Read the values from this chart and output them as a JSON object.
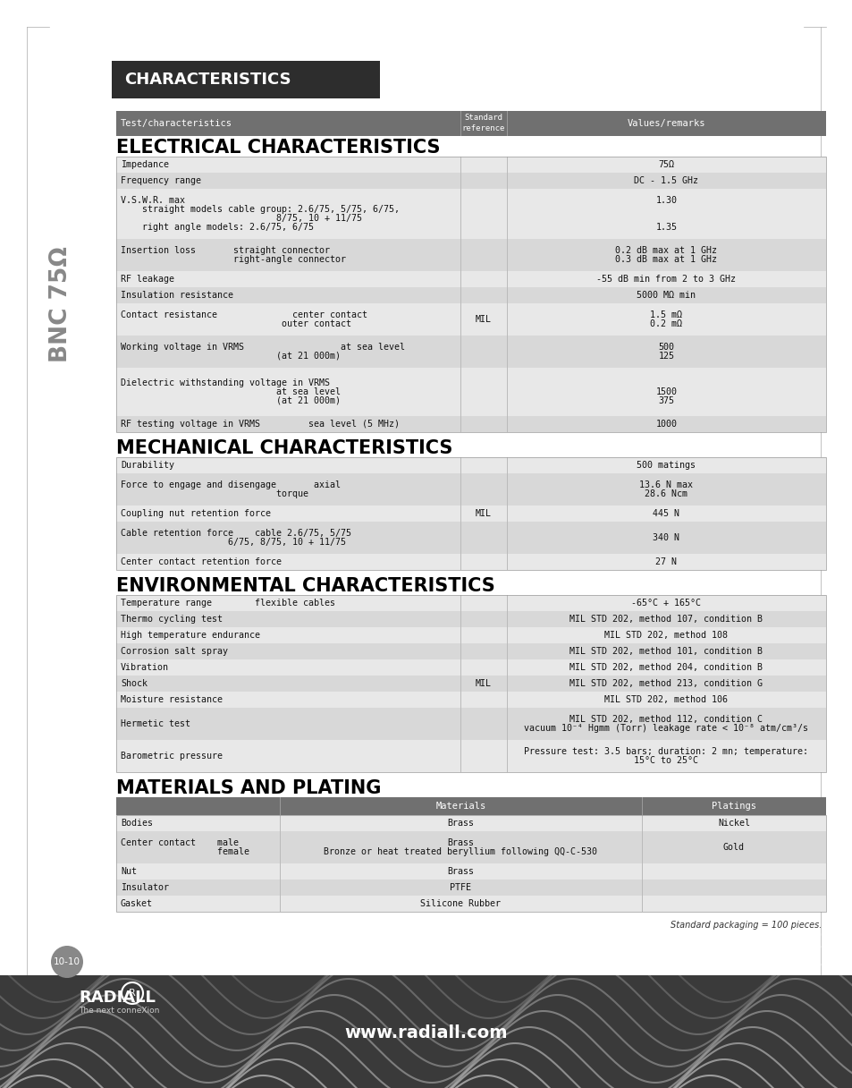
{
  "page_bg": "#ffffff",
  "header_bg": "#2d2d2d",
  "header_text_color": "#ffffff",
  "table_header_bg": "#707070",
  "row_light": "#e8e8e8",
  "row_mid": "#d8d8d8",
  "side_label": "BNC 75Ω",
  "header_title": "CHARACTERISTICS",
  "col_header": [
    "Test/characteristics",
    "Standard\nreference",
    "Values/remarks"
  ],
  "electrical_title": "ELECTRICAL CHARACTERISTICS",
  "electrical_rows": [
    {
      "left": "Impedance",
      "mid": "",
      "right": "75Ω",
      "shade": 0
    },
    {
      "left": "Frequency range",
      "mid": "",
      "right": "DC - 1.5 GHz",
      "shade": 1
    },
    {
      "left": "V.S.W.R. max\n    straight models cable group: 2.6/75, 5/75, 6/75,\n                             8/75, 10 + 11/75\n    right angle models: 2.6/75, 6/75",
      "mid": "",
      "right": "1.30\n\n\n1.35",
      "shade": 0
    },
    {
      "left": "Insertion loss       straight connector\n                     right-angle connector",
      "mid": "",
      "right": "0.2 dB max at 1 GHz\n0.3 dB max at 1 GHz",
      "shade": 1
    },
    {
      "left": "RF leakage",
      "mid": "",
      "right": "-55 dB min from 2 to 3 GHz",
      "shade": 0
    },
    {
      "left": "Insulation resistance",
      "mid": "",
      "right": "5000 MΩ min",
      "shade": 1
    },
    {
      "left": "Contact resistance              center contact\n                              outer contact",
      "mid": "MIL",
      "right": "1.5 mΩ\n0.2 mΩ",
      "shade": 0
    },
    {
      "left": "Working voltage in VRMS                  at sea level\n                             (at 21 000m)",
      "mid": "",
      "right": "500\n125",
      "shade": 1
    },
    {
      "left": "Dielectric withstanding voltage in VRMS\n                             at sea level\n                             (at 21 000m)",
      "mid": "",
      "right": "\n1500\n375",
      "shade": 0
    },
    {
      "left": "RF testing voltage in VRMS         sea level (5 MHz)",
      "mid": "",
      "right": "1000",
      "shade": 1
    }
  ],
  "mechanical_title": "MECHANICAL CHARACTERISTICS",
  "mechanical_rows": [
    {
      "left": "Durability",
      "mid": "",
      "right": "500 matings",
      "shade": 0
    },
    {
      "left": "Force to engage and disengage       axial\n                             torque",
      "mid": "",
      "right": "13.6 N max\n28.6 Ncm",
      "shade": 1
    },
    {
      "left": "Coupling nut retention force",
      "mid": "MIL",
      "right": "445 N",
      "shade": 0
    },
    {
      "left": "Cable retention force    cable 2.6/75, 5/75\n                    6/75, 8/75, 10 + 11/75",
      "mid": "",
      "right": "340 N",
      "shade": 1
    },
    {
      "left": "Center contact retention force",
      "mid": "",
      "right": "27 N",
      "shade": 0
    }
  ],
  "environmental_title": "ENVIRONMENTAL CHARACTERISTICS",
  "environmental_rows": [
    {
      "left": "Temperature range        flexible cables",
      "mid": "",
      "right": "-65°C + 165°C",
      "shade": 0
    },
    {
      "left": "Thermo cycling test",
      "mid": "",
      "right": "MIL STD 202, method 107, condition B",
      "shade": 1
    },
    {
      "left": "High temperature endurance",
      "mid": "",
      "right": "MIL STD 202, method 108",
      "shade": 0
    },
    {
      "left": "Corrosion salt spray",
      "mid": "",
      "right": "MIL STD 202, method 101, condition B",
      "shade": 1
    },
    {
      "left": "Vibration",
      "mid": "",
      "right": "MIL STD 202, method 204, condition B",
      "shade": 0
    },
    {
      "left": "Shock",
      "mid": "MIL",
      "right": "MIL STD 202, method 213, condition G",
      "shade": 1
    },
    {
      "left": "Moisture resistance",
      "mid": "",
      "right": "MIL STD 202, method 106",
      "shade": 0
    },
    {
      "left": "Hermetic test",
      "mid": "",
      "right": "MIL STD 202, method 112, condition C\nvacuum 10⁻⁴ Hgmm (Torr) leakage rate < 10⁻⁸ atm/cm³/s",
      "shade": 1
    },
    {
      "left": "Barometric pressure",
      "mid": "",
      "right": "Pressure test: 3.5 bars; duration: 2 mn; temperature:\n15°C to 25°C",
      "shade": 0
    }
  ],
  "materials_title": "MATERIALS AND PLATING",
  "materials_col_header": [
    "",
    "Materials",
    "Platings"
  ],
  "materials_rows": [
    {
      "left": "Bodies",
      "mid": "Brass",
      "right": "Nickel",
      "shade": 0
    },
    {
      "left": "Center contact    male\n                  female",
      "mid": "Brass\nBronze or heat treated beryllium following QQ-C-530",
      "right": "Gold",
      "shade": 1
    },
    {
      "left": "Nut",
      "mid": "Brass",
      "right": "",
      "shade": 0
    },
    {
      "left": "Insulator",
      "mid": "PTFE",
      "right": "",
      "shade": 1
    },
    {
      "left": "Gasket",
      "mid": "Silicone Rubber",
      "right": "",
      "shade": 0
    }
  ],
  "footer_note": "Standard packaging = 100 pieces.",
  "website": "www.radiall.com",
  "page_num": "10-10"
}
